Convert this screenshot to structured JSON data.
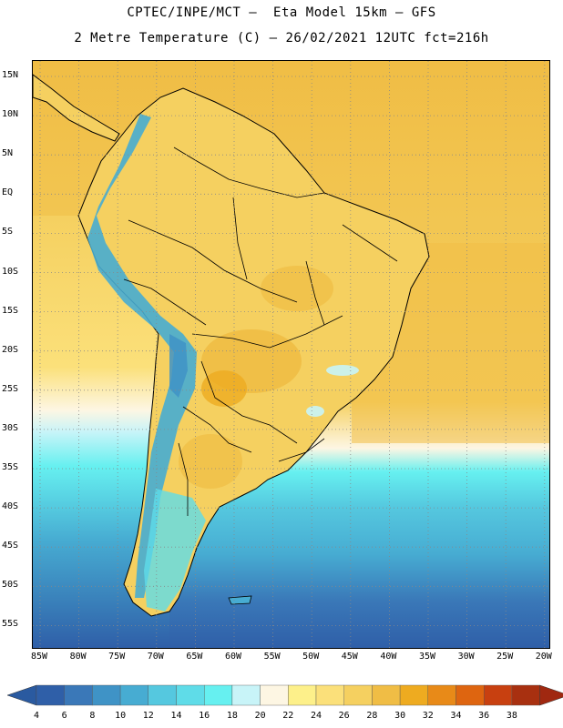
{
  "header": {
    "line1": "CPTEC/INPE/MCT –  Eta Model 15km – GFS",
    "line2": "2 Metre Temperature (C) – 26/02/2021 12UTC fct=216h"
  },
  "map": {
    "lat_labels": [
      "15N",
      "10N",
      "5N",
      "EQ",
      "5S",
      "10S",
      "15S",
      "20S",
      "25S",
      "30S",
      "35S",
      "40S",
      "45S",
      "50S",
      "55S"
    ],
    "lon_labels": [
      "85W",
      "80W",
      "75W",
      "70W",
      "65W",
      "60W",
      "55W",
      "50W",
      "45W",
      "40W",
      "35W",
      "30W",
      "25W",
      "20W"
    ],
    "grid": "dotted",
    "extent": {
      "lon": [
        -85,
        -20
      ],
      "lat": [
        -57.5,
        16
      ]
    }
  },
  "colorbar": {
    "levels": [
      "4",
      "6",
      "8",
      "10",
      "12",
      "14",
      "16",
      "18",
      "20",
      "22",
      "24",
      "26",
      "28",
      "30",
      "32",
      "34",
      "36",
      "38"
    ],
    "colors": [
      "#2f5fa8",
      "#3a78b8",
      "#3f93c6",
      "#47acd2",
      "#55c8df",
      "#5fdce8",
      "#66f0f0",
      "#c8f4f8",
      "#fdf6e3",
      "#fdf08a",
      "#fbe07a",
      "#f5d060",
      "#f0bd45",
      "#eeab20",
      "#e88a18",
      "#de6510",
      "#c84010",
      "#a83010"
    ],
    "under_color": "#2a5aa0",
    "over_color": "#a02810"
  }
}
